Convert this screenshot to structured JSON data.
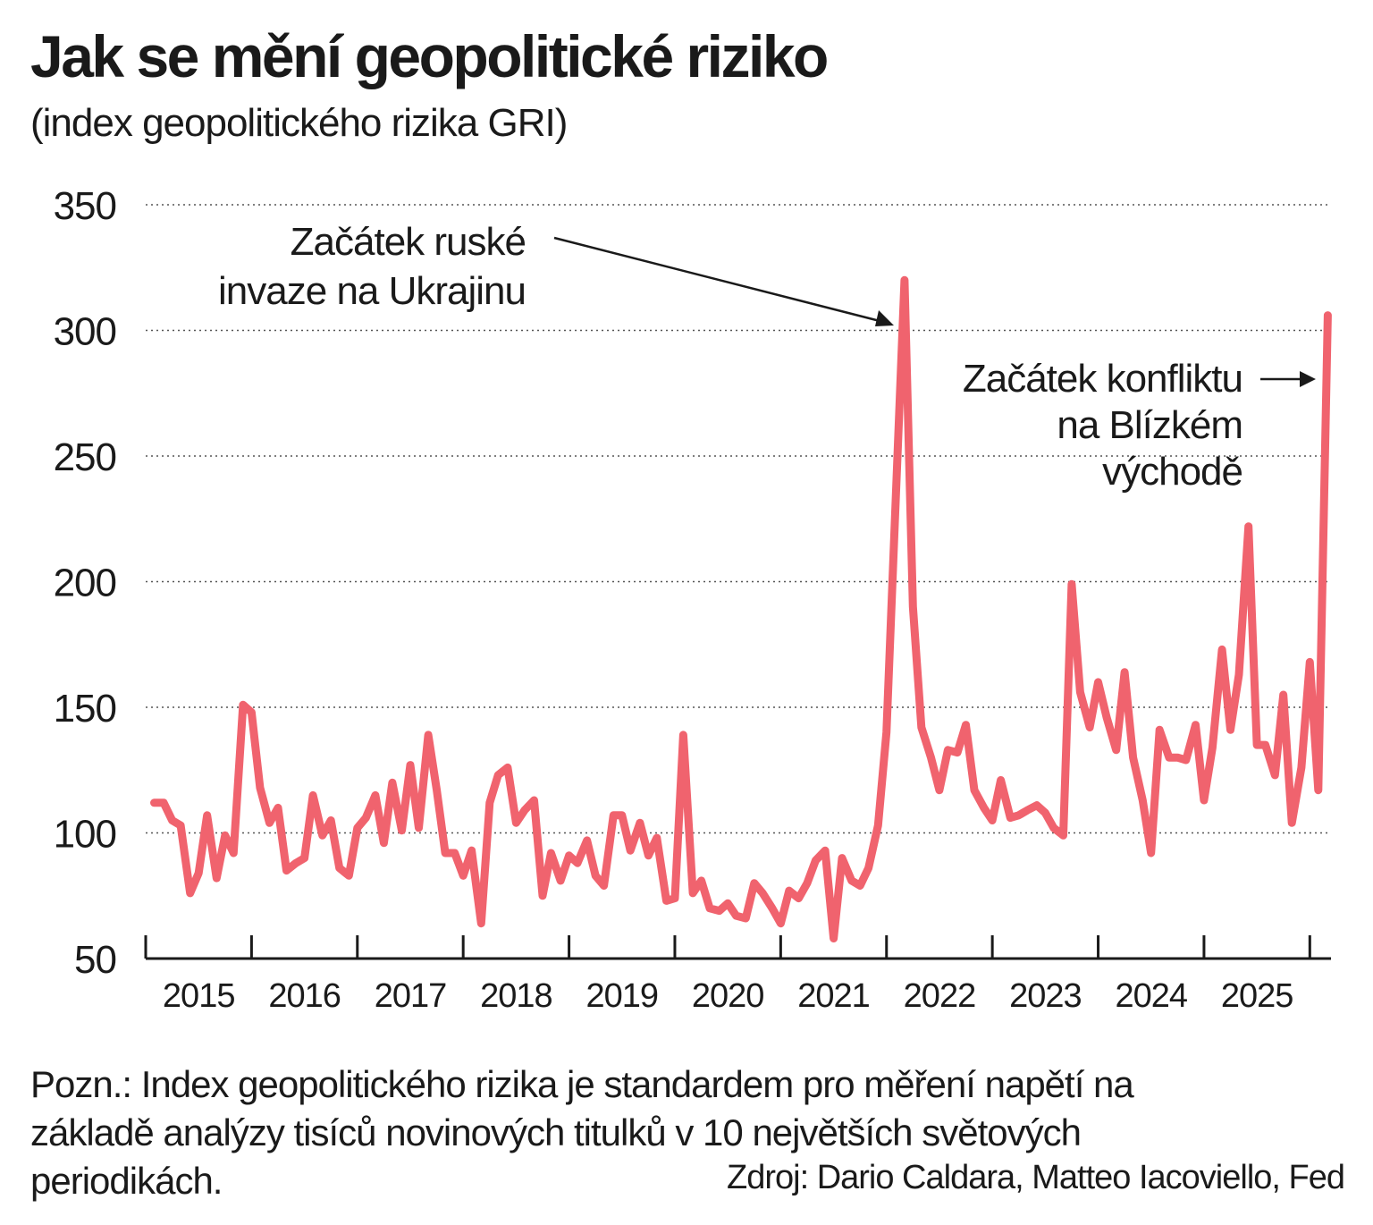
{
  "header": {
    "title": "Jak se mění geopolitické riziko",
    "subtitle": "(index geopolitického rizika GRI)"
  },
  "footer": {
    "note": "Pozn.: Index geopolitického rizika je standardem pro měření napětí na základě analýzy tisíců novinových titulků v 10 největších světových periodikách.",
    "source": "Zdroj: Dario Caldara, Matteo Iacoviello, Fed"
  },
  "colors": {
    "line": "#f0636e",
    "text": "#1a1a1a",
    "grid": "#555555"
  },
  "chart_data": {
    "type": "line",
    "title": "Jak se mění geopolitické riziko",
    "subtitle": "(index geopolitického rizika GRI)",
    "xlabel": "",
    "ylabel": "",
    "ylim": [
      50,
      350
    ],
    "yticks": [
      50,
      100,
      150,
      200,
      250,
      300,
      350
    ],
    "xlim": [
      2015.0,
      2026.2
    ],
    "xtick_labels": [
      "2015",
      "2016",
      "2017",
      "2018",
      "2019",
      "2020",
      "2021",
      "2022",
      "2023",
      "2024",
      "2025"
    ],
    "grid": "horizontal dotted",
    "legend": "none",
    "series": [
      {
        "color": "#f0636e",
        "x": [
          2015.08,
          2015.17,
          2015.25,
          2015.33,
          2015.42,
          2015.5,
          2015.58,
          2015.67,
          2015.75,
          2015.83,
          2015.92,
          2016.0,
          2016.08,
          2016.17,
          2016.25,
          2016.33,
          2016.42,
          2016.5,
          2016.58,
          2016.67,
          2016.75,
          2016.83,
          2016.92,
          2017.0,
          2017.08,
          2017.17,
          2017.25,
          2017.33,
          2017.42,
          2017.5,
          2017.58,
          2017.67,
          2017.75,
          2017.83,
          2017.92,
          2018.0,
          2018.08,
          2018.17,
          2018.25,
          2018.33,
          2018.42,
          2018.5,
          2018.58,
          2018.67,
          2018.75,
          2018.83,
          2018.92,
          2019.0,
          2019.08,
          2019.17,
          2019.25,
          2019.33,
          2019.42,
          2019.5,
          2019.58,
          2019.67,
          2019.75,
          2019.83,
          2019.92,
          2020.0,
          2020.08,
          2020.17,
          2020.25,
          2020.33,
          2020.42,
          2020.5,
          2020.58,
          2020.67,
          2020.75,
          2020.83,
          2020.92,
          2021.0,
          2021.08,
          2021.17,
          2021.25,
          2021.33,
          2021.42,
          2021.5,
          2021.58,
          2021.67,
          2021.75,
          2021.83,
          2021.92,
          2022.0,
          2022.08,
          2022.17,
          2022.25,
          2022.33,
          2022.42,
          2022.5,
          2022.58,
          2022.67,
          2022.75,
          2022.83,
          2022.92,
          2023.0,
          2023.08,
          2023.17,
          2023.25,
          2023.33,
          2023.42,
          2023.5,
          2023.58,
          2023.67,
          2023.75,
          2023.83,
          2023.92,
          2024.0,
          2024.08,
          2024.17,
          2024.25,
          2024.33,
          2024.42,
          2024.5,
          2024.58,
          2024.67,
          2024.75,
          2024.83,
          2024.92,
          2025.0,
          2025.08,
          2025.17,
          2025.25,
          2025.33,
          2025.42,
          2025.5,
          2025.58,
          2025.67,
          2025.75,
          2025.83,
          2025.92,
          2026.0,
          2026.08,
          2026.17
        ],
        "y": [
          112,
          112,
          105,
          103,
          76,
          84,
          107,
          82,
          99,
          92,
          151,
          148,
          118,
          104,
          110,
          85,
          88,
          90,
          115,
          99,
          105,
          86,
          83,
          102,
          106,
          115,
          96,
          120,
          101,
          127,
          102,
          139,
          117,
          92,
          92,
          83,
          93,
          64,
          112,
          123,
          126,
          104,
          109,
          113,
          75,
          92,
          81,
          91,
          88,
          97,
          83,
          79,
          107,
          107,
          93,
          104,
          91,
          98,
          73,
          74,
          139,
          76,
          81,
          70,
          69,
          72,
          67,
          66,
          80,
          76,
          70,
          64,
          77,
          74,
          80,
          89,
          93,
          58,
          90,
          81,
          79,
          86,
          103,
          140,
          225,
          320,
          190,
          142,
          130,
          117,
          133,
          132,
          143,
          117,
          110,
          105,
          121,
          106,
          107,
          109,
          111,
          108,
          102,
          99,
          199,
          156,
          142,
          160,
          146,
          133,
          164,
          130,
          113,
          92,
          141,
          130,
          130,
          129,
          143,
          113,
          134,
          173,
          141,
          163,
          222,
          135,
          135,
          123,
          155,
          104,
          126,
          168,
          117,
          306
        ]
      }
    ],
    "annotations": [
      {
        "text": "Začátek ruské invaze na Ukrajinu",
        "x": 2022.17,
        "y": 320
      },
      {
        "text": "Začátek konfliktu na Blízkém východě",
        "x": 2026.17,
        "y": 306
      }
    ]
  }
}
